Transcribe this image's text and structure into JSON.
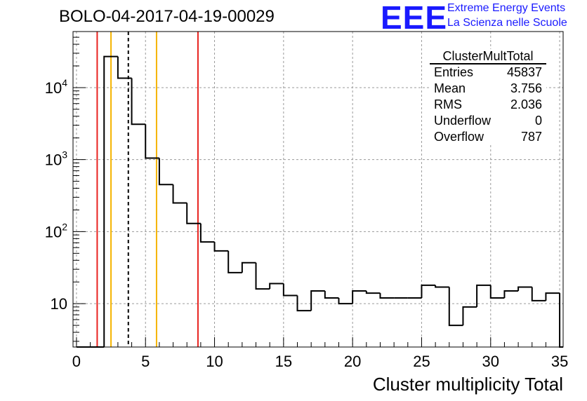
{
  "header": {
    "title": "BOLO-04-2017-04-19-00029",
    "logo": "EEE",
    "brand_line1": "Extreme Energy Events",
    "brand_line2": "La Scienza nelle Scuole"
  },
  "stats": {
    "name": "ClusterMultTotal",
    "rows": [
      {
        "label": "Entries",
        "value": "45837"
      },
      {
        "label": "Mean",
        "value": "3.756"
      },
      {
        "label": "RMS",
        "value": "2.036"
      },
      {
        "label": "Underflow",
        "value": "0"
      },
      {
        "label": "Overflow",
        "value": "787"
      }
    ]
  },
  "chart_data": {
    "type": "histogram",
    "title": "BOLO-04-2017-04-19-00029",
    "xlabel": "Cluster multiplicity Total",
    "ylabel": "",
    "xlim": [
      -0.25,
      35.25
    ],
    "ylim": [
      2.5,
      60000
    ],
    "yscale": "log",
    "grid": true,
    "bin_width": 1,
    "bins_start": [
      0,
      1,
      2,
      3,
      4,
      5,
      6,
      7,
      8,
      9,
      10,
      11,
      12,
      13,
      14,
      15,
      16,
      17,
      18,
      19,
      20,
      21,
      22,
      23,
      24,
      25,
      26,
      27,
      28,
      29,
      30,
      31,
      32,
      33,
      34,
      35
    ],
    "counts": [
      0,
      0,
      27000,
      13500,
      3100,
      1050,
      450,
      250,
      130,
      72,
      54,
      27,
      37,
      16,
      19,
      13,
      8,
      15,
      12,
      10,
      15,
      14,
      12,
      12,
      12,
      18,
      17,
      5,
      9,
      18,
      12,
      15,
      17,
      11,
      14,
      0
    ],
    "x_ticks": [
      0,
      5,
      10,
      15,
      20,
      25,
      30,
      35
    ],
    "y_ticks": [
      {
        "value": 10,
        "base": "10",
        "exp": ""
      },
      {
        "value": 100,
        "base": "10",
        "exp": "2"
      },
      {
        "value": 1000,
        "base": "10",
        "exp": "3"
      },
      {
        "value": 10000,
        "base": "10",
        "exp": "4"
      }
    ],
    "vertical_lines": [
      {
        "x": 1.5,
        "color": "#e8231f",
        "style": "solid"
      },
      {
        "x": 2.5,
        "color": "#f5b400",
        "style": "solid"
      },
      {
        "x": 3.756,
        "color": "#000000",
        "style": "dashed"
      },
      {
        "x": 5.8,
        "color": "#f5b400",
        "style": "solid"
      },
      {
        "x": 8.8,
        "color": "#e8231f",
        "style": "solid"
      }
    ]
  }
}
